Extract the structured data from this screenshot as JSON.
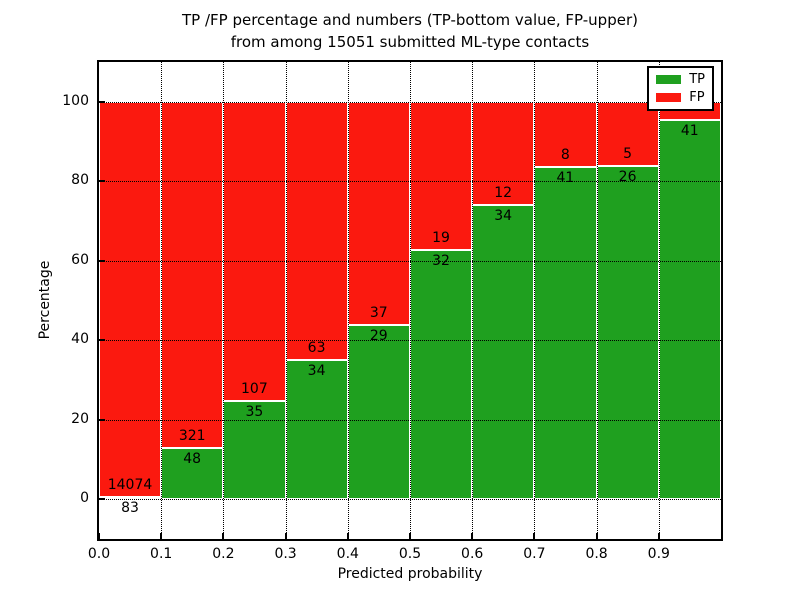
{
  "chart_data": {
    "type": "bar",
    "stacked": true,
    "title": "TP /FP percentage and numbers (TP-bottom value, FP-upper)",
    "subtitle": "from among 15051 submitted ML-type contacts",
    "xlabel": "Predicted probability",
    "ylabel": "Percentage",
    "xlim": [
      0.0,
      1.0
    ],
    "ylim": [
      -10,
      110
    ],
    "grid": "dotted",
    "total_submitted_contacts": 15051,
    "xticks": [
      {
        "value": 0.0,
        "label": "0.0"
      },
      {
        "value": 0.1,
        "label": "0.1"
      },
      {
        "value": 0.2,
        "label": "0.2"
      },
      {
        "value": 0.3,
        "label": "0.3"
      },
      {
        "value": 0.4,
        "label": "0.4"
      },
      {
        "value": 0.5,
        "label": "0.5"
      },
      {
        "value": 0.6,
        "label": "0.6"
      },
      {
        "value": 0.7,
        "label": "0.7"
      },
      {
        "value": 0.8,
        "label": "0.8"
      },
      {
        "value": 0.9,
        "label": "0.9"
      }
    ],
    "yticks": [
      {
        "value": 0,
        "label": "0"
      },
      {
        "value": 20,
        "label": "20"
      },
      {
        "value": 40,
        "label": "40"
      },
      {
        "value": 60,
        "label": "60"
      },
      {
        "value": 80,
        "label": "80"
      },
      {
        "value": 100,
        "label": "100"
      }
    ],
    "colors": {
      "tp": "#1fa01f",
      "fp": "#fb190f",
      "bar_edge": "#ffffff",
      "grid": "#000000"
    },
    "legend": {
      "position": "upper-right",
      "items": [
        {
          "label": "TP",
          "color": "#1fa01f"
        },
        {
          "label": "FP",
          "color": "#fb190f"
        }
      ]
    },
    "bars": [
      {
        "x0": 0.0,
        "x1": 0.1,
        "tp_count": 83,
        "fp_count": 14074,
        "tp_pct": 0.59
      },
      {
        "x0": 0.1,
        "x1": 0.2,
        "tp_count": 48,
        "fp_count": 321,
        "tp_pct": 13.0
      },
      {
        "x0": 0.2,
        "x1": 0.3,
        "tp_count": 35,
        "fp_count": 107,
        "tp_pct": 24.65
      },
      {
        "x0": 0.3,
        "x1": 0.4,
        "tp_count": 34,
        "fp_count": 63,
        "tp_pct": 35.05
      },
      {
        "x0": 0.4,
        "x1": 0.5,
        "tp_count": 29,
        "fp_count": 37,
        "tp_pct": 43.94
      },
      {
        "x0": 0.5,
        "x1": 0.6,
        "tp_count": 32,
        "fp_count": 19,
        "tp_pct": 62.75
      },
      {
        "x0": 0.6,
        "x1": 0.7,
        "tp_count": 34,
        "fp_count": 12,
        "tp_pct": 73.91
      },
      {
        "x0": 0.7,
        "x1": 0.8,
        "tp_count": 41,
        "fp_count": 8,
        "tp_pct": 83.67
      },
      {
        "x0": 0.8,
        "x1": 0.9,
        "tp_count": 26,
        "fp_count": 5,
        "tp_pct": 83.87
      },
      {
        "x0": 0.9,
        "x1": 1.0,
        "tp_count": 41,
        "fp_count": null,
        "tp_pct": 95.3,
        "fp_label_visible": false
      }
    ]
  }
}
